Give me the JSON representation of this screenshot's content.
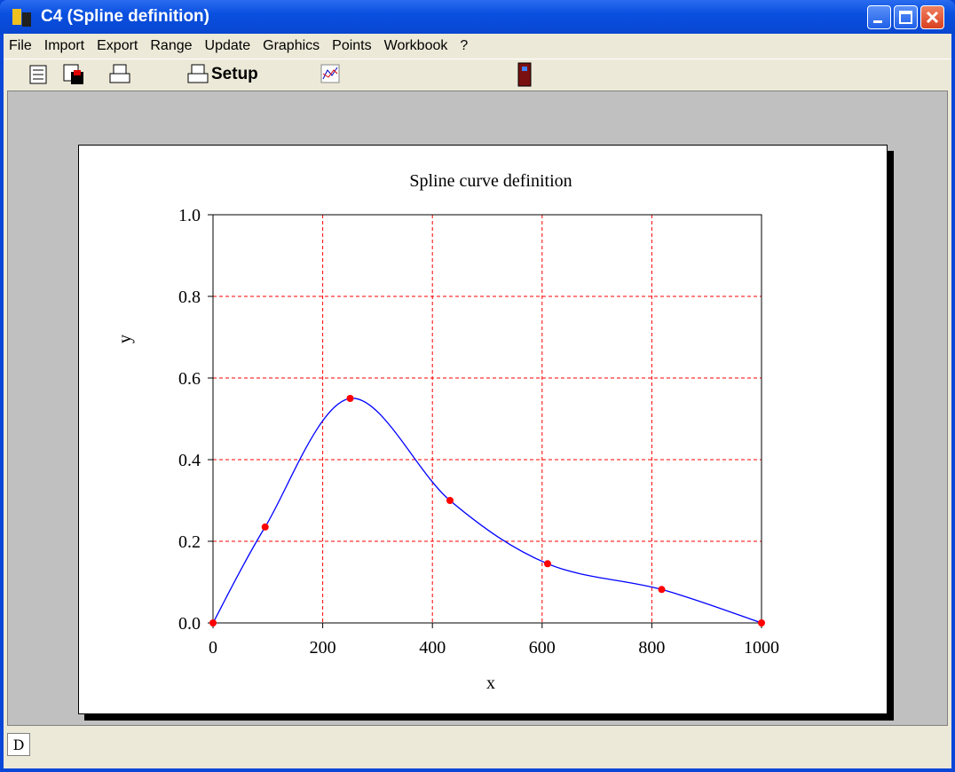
{
  "window": {
    "title": "C4 (Spline definition)"
  },
  "menu": [
    "File",
    "Import",
    "Export",
    "Range",
    "Update",
    "Graphics",
    "Points",
    "Workbook",
    "?"
  ],
  "toolbar": {
    "setup": "Setup"
  },
  "status": {
    "tab": "D"
  },
  "chart_data": {
    "type": "line",
    "title": "Spline curve definition",
    "x_label": "x",
    "y_label": "y",
    "x": [
      0,
      95,
      250,
      432,
      610,
      818,
      1000
    ],
    "values": [
      0,
      0.235,
      0.55,
      0.3,
      0.145,
      0.082,
      0
    ],
    "color": "#0000ff",
    "marker_color": "#ff0000",
    "grid": true,
    "grid_color": "#ff0000",
    "xlim": [
      0,
      1000
    ],
    "xticks": [
      0,
      200,
      400,
      600,
      800,
      1000
    ],
    "ylim": [
      0,
      1
    ],
    "yticks": [
      {
        "value": 0,
        "label": "0.0"
      },
      0.2,
      0.4,
      0.6,
      0.8,
      {
        "value": 1,
        "label": "1.0"
      }
    ]
  }
}
